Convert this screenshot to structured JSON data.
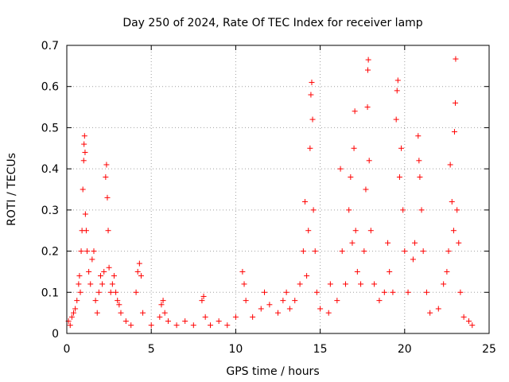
{
  "chart_data": {
    "type": "scatter",
    "title": "Day 250 of 2024, Rate Of TEC Index for receiver lamp",
    "xlabel": "GPS time / hours",
    "ylabel": "ROTI / TECUs",
    "xlim": [
      0,
      25
    ],
    "ylim": [
      0,
      0.7
    ],
    "xticks": [
      0,
      5,
      10,
      15,
      20,
      25
    ],
    "yticks": [
      0,
      0.1,
      0.2,
      0.3,
      0.4,
      0.5,
      0.6,
      0.7
    ],
    "xtick_labels": [
      "0",
      "5",
      "10",
      "15",
      "20",
      "25"
    ],
    "ytick_labels": [
      "0",
      "0.1",
      "0.2",
      "0.3",
      "0.4",
      "0.5",
      "0.6",
      "0.7"
    ],
    "grid": true,
    "marker": "+",
    "color": "#ff0000",
    "series": [
      {
        "name": "ROTI",
        "points": [
          [
            0.1,
            0.03
          ],
          [
            0.2,
            0.02
          ],
          [
            0.3,
            0.04
          ],
          [
            0.4,
            0.05
          ],
          [
            0.5,
            0.06
          ],
          [
            0.6,
            0.08
          ],
          [
            0.7,
            0.12
          ],
          [
            0.75,
            0.14
          ],
          [
            0.8,
            0.1
          ],
          [
            0.85,
            0.2
          ],
          [
            0.9,
            0.25
          ],
          [
            0.95,
            0.35
          ],
          [
            1.0,
            0.42
          ],
          [
            1.02,
            0.46
          ],
          [
            1.05,
            0.48
          ],
          [
            1.08,
            0.44
          ],
          [
            1.1,
            0.29
          ],
          [
            1.15,
            0.25
          ],
          [
            1.2,
            0.2
          ],
          [
            1.3,
            0.15
          ],
          [
            1.4,
            0.12
          ],
          [
            1.5,
            0.18
          ],
          [
            1.6,
            0.2
          ],
          [
            1.7,
            0.08
          ],
          [
            1.8,
            0.05
          ],
          [
            1.9,
            0.1
          ],
          [
            2.0,
            0.14
          ],
          [
            2.1,
            0.12
          ],
          [
            2.2,
            0.15
          ],
          [
            2.3,
            0.38
          ],
          [
            2.35,
            0.41
          ],
          [
            2.4,
            0.33
          ],
          [
            2.45,
            0.25
          ],
          [
            2.5,
            0.16
          ],
          [
            2.6,
            0.1
          ],
          [
            2.7,
            0.12
          ],
          [
            2.8,
            0.14
          ],
          [
            2.9,
            0.1
          ],
          [
            3.0,
            0.08
          ],
          [
            3.1,
            0.07
          ],
          [
            3.2,
            0.05
          ],
          [
            3.5,
            0.03
          ],
          [
            3.8,
            0.02
          ],
          [
            4.1,
            0.1
          ],
          [
            4.2,
            0.15
          ],
          [
            4.3,
            0.17
          ],
          [
            4.4,
            0.14
          ],
          [
            4.5,
            0.05
          ],
          [
            5.0,
            0.02
          ],
          [
            5.5,
            0.04
          ],
          [
            5.6,
            0.07
          ],
          [
            5.7,
            0.08
          ],
          [
            5.8,
            0.05
          ],
          [
            6.0,
            0.03
          ],
          [
            6.5,
            0.02
          ],
          [
            7.0,
            0.03
          ],
          [
            7.5,
            0.02
          ],
          [
            8.0,
            0.08
          ],
          [
            8.1,
            0.09
          ],
          [
            8.2,
            0.04
          ],
          [
            8.5,
            0.02
          ],
          [
            9.0,
            0.03
          ],
          [
            9.5,
            0.02
          ],
          [
            10.0,
            0.04
          ],
          [
            10.4,
            0.15
          ],
          [
            10.5,
            0.12
          ],
          [
            10.6,
            0.08
          ],
          [
            11.0,
            0.04
          ],
          [
            11.5,
            0.06
          ],
          [
            11.7,
            0.1
          ],
          [
            12.0,
            0.07
          ],
          [
            12.5,
            0.05
          ],
          [
            12.8,
            0.08
          ],
          [
            13.0,
            0.1
          ],
          [
            13.2,
            0.06
          ],
          [
            13.5,
            0.08
          ],
          [
            13.8,
            0.12
          ],
          [
            14.0,
            0.2
          ],
          [
            14.1,
            0.32
          ],
          [
            14.2,
            0.14
          ],
          [
            14.3,
            0.25
          ],
          [
            14.4,
            0.45
          ],
          [
            14.45,
            0.58
          ],
          [
            14.5,
            0.61
          ],
          [
            14.55,
            0.52
          ],
          [
            14.6,
            0.3
          ],
          [
            14.7,
            0.2
          ],
          [
            14.8,
            0.1
          ],
          [
            15.0,
            0.06
          ],
          [
            15.5,
            0.05
          ],
          [
            15.6,
            0.12
          ],
          [
            16.0,
            0.08
          ],
          [
            16.2,
            0.4
          ],
          [
            16.3,
            0.2
          ],
          [
            16.5,
            0.12
          ],
          [
            16.7,
            0.3
          ],
          [
            16.8,
            0.38
          ],
          [
            16.9,
            0.22
          ],
          [
            17.0,
            0.45
          ],
          [
            17.05,
            0.54
          ],
          [
            17.1,
            0.25
          ],
          [
            17.2,
            0.15
          ],
          [
            17.4,
            0.12
          ],
          [
            17.6,
            0.2
          ],
          [
            17.7,
            0.35
          ],
          [
            17.8,
            0.55
          ],
          [
            17.82,
            0.64
          ],
          [
            17.85,
            0.665
          ],
          [
            17.9,
            0.42
          ],
          [
            18.0,
            0.25
          ],
          [
            18.2,
            0.12
          ],
          [
            18.5,
            0.08
          ],
          [
            18.8,
            0.1
          ],
          [
            19.0,
            0.22
          ],
          [
            19.1,
            0.15
          ],
          [
            19.3,
            0.1
          ],
          [
            19.5,
            0.52
          ],
          [
            19.55,
            0.59
          ],
          [
            19.6,
            0.615
          ],
          [
            19.7,
            0.38
          ],
          [
            19.8,
            0.45
          ],
          [
            19.9,
            0.3
          ],
          [
            20.0,
            0.2
          ],
          [
            20.2,
            0.1
          ],
          [
            20.5,
            0.18
          ],
          [
            20.6,
            0.22
          ],
          [
            20.8,
            0.48
          ],
          [
            20.85,
            0.42
          ],
          [
            20.9,
            0.38
          ],
          [
            21.0,
            0.3
          ],
          [
            21.1,
            0.2
          ],
          [
            21.3,
            0.1
          ],
          [
            21.5,
            0.05
          ],
          [
            22.0,
            0.06
          ],
          [
            22.3,
            0.12
          ],
          [
            22.5,
            0.15
          ],
          [
            22.6,
            0.2
          ],
          [
            22.7,
            0.41
          ],
          [
            22.8,
            0.32
          ],
          [
            22.9,
            0.25
          ],
          [
            22.95,
            0.49
          ],
          [
            23.0,
            0.56
          ],
          [
            23.02,
            0.667
          ],
          [
            23.1,
            0.3
          ],
          [
            23.2,
            0.22
          ],
          [
            23.3,
            0.1
          ],
          [
            23.5,
            0.04
          ],
          [
            23.8,
            0.03
          ],
          [
            24.0,
            0.02
          ]
        ]
      }
    ]
  }
}
